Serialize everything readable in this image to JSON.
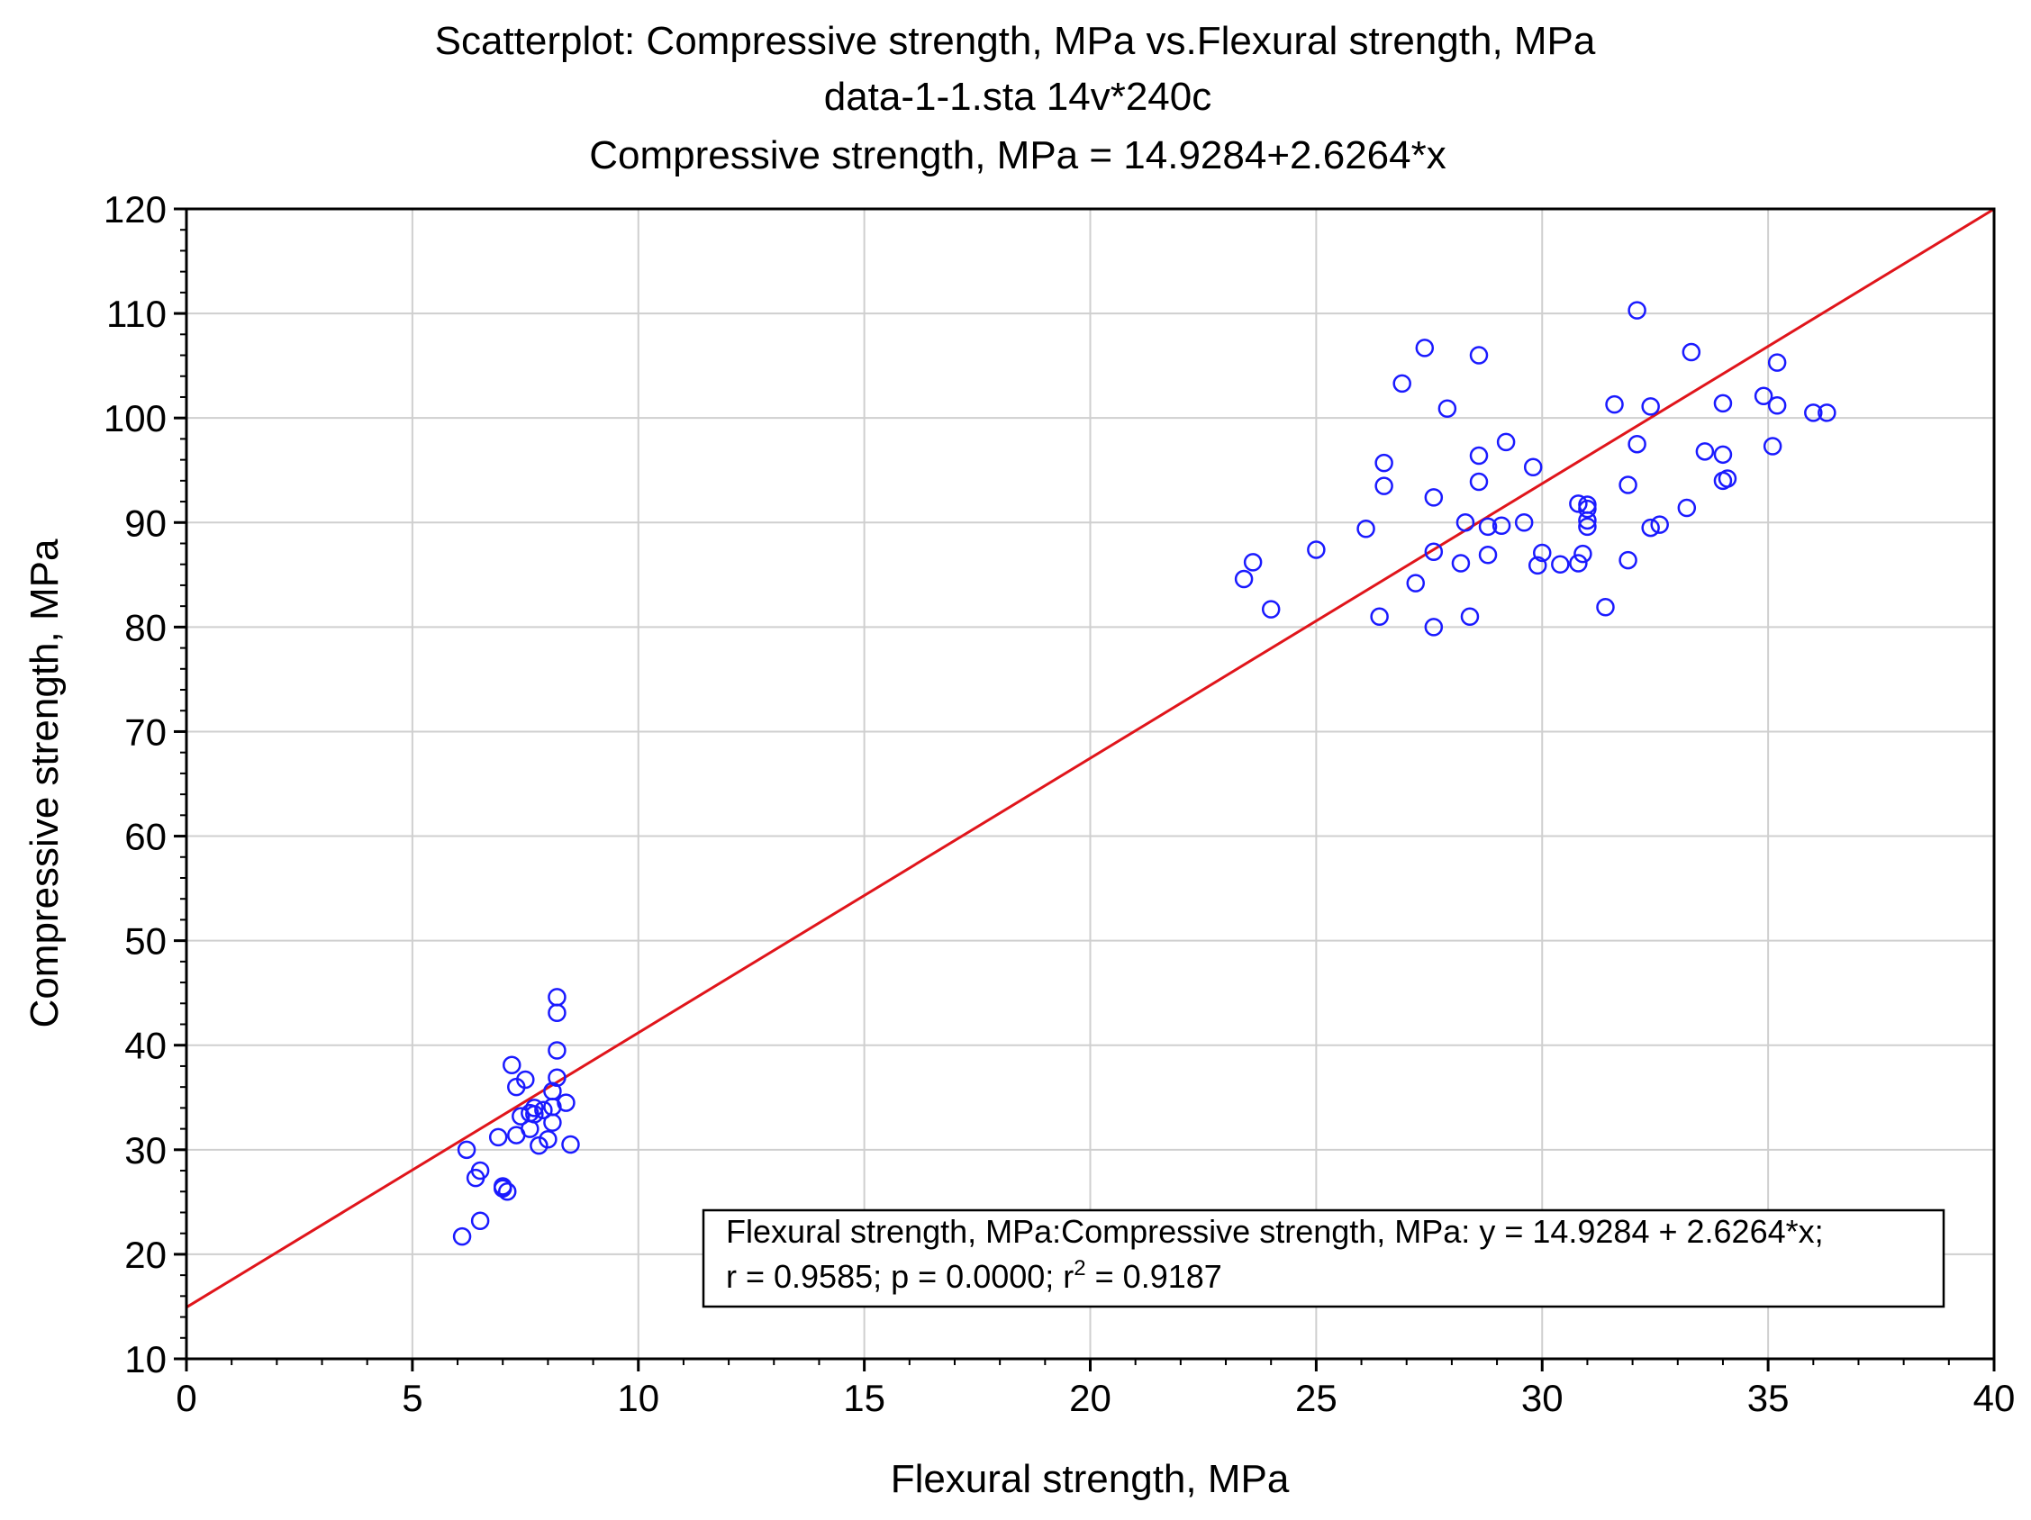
{
  "chart_data": {
    "type": "scatter",
    "title_lines": [
      "Scatterplot:   Compressive strength, MPa vs.Flexural strength, MPa",
      "data-1-1.sta 14v*240c",
      "Compressive strength, MPa = 14.9284+2.6264*x"
    ],
    "xlabel": "Flexural strength, MPa",
    "ylabel": "Compressive strength, MPa",
    "xlim": [
      0,
      40
    ],
    "ylim": [
      10,
      120
    ],
    "xticks": [
      0,
      5,
      10,
      15,
      20,
      25,
      30,
      35,
      40
    ],
    "yticks": [
      10,
      20,
      30,
      40,
      50,
      60,
      70,
      80,
      90,
      100,
      110,
      120
    ],
    "grid": true,
    "marker_color": "#1a1aff",
    "line_color": "#e0151b",
    "regression": {
      "intercept": 14.9284,
      "slope": 2.6264
    },
    "legend": {
      "placement": "bottom-right",
      "line1": "Flexural strength, MPa:Compressive strength, MPa:   y = 14.9284 + 2.6264*x;",
      "line2_prefix": "r = 0.9585; p = 0.0000; r",
      "line2_sup": "2",
      "line2_suffix": " = 0.9187"
    },
    "points": [
      [
        6.1,
        21.7
      ],
      [
        6.2,
        30.0
      ],
      [
        6.4,
        27.3
      ],
      [
        6.5,
        28.0
      ],
      [
        6.5,
        23.2
      ],
      [
        6.9,
        31.2
      ],
      [
        7.0,
        26.3
      ],
      [
        7.0,
        26.5
      ],
      [
        7.1,
        26.0
      ],
      [
        7.2,
        38.1
      ],
      [
        7.3,
        36.0
      ],
      [
        7.3,
        31.4
      ],
      [
        7.4,
        33.2
      ],
      [
        7.5,
        36.7
      ],
      [
        7.6,
        33.5
      ],
      [
        7.6,
        32.0
      ],
      [
        7.7,
        33.4
      ],
      [
        7.7,
        34.0
      ],
      [
        7.8,
        30.4
      ],
      [
        7.9,
        33.8
      ],
      [
        8.0,
        31.0
      ],
      [
        8.1,
        35.6
      ],
      [
        8.1,
        34.1
      ],
      [
        8.1,
        32.6
      ],
      [
        8.2,
        44.6
      ],
      [
        8.2,
        43.1
      ],
      [
        8.2,
        39.5
      ],
      [
        8.2,
        36.9
      ],
      [
        8.4,
        34.5
      ],
      [
        8.5,
        30.5
      ],
      [
        23.4,
        84.6
      ],
      [
        23.6,
        86.2
      ],
      [
        24.0,
        81.7
      ],
      [
        25.0,
        87.4
      ],
      [
        26.1,
        89.4
      ],
      [
        26.4,
        81.0
      ],
      [
        26.5,
        95.7
      ],
      [
        26.5,
        93.5
      ],
      [
        26.9,
        103.3
      ],
      [
        27.2,
        84.2
      ],
      [
        27.4,
        106.7
      ],
      [
        27.6,
        92.4
      ],
      [
        27.6,
        87.2
      ],
      [
        27.6,
        80.0
      ],
      [
        27.9,
        100.9
      ],
      [
        28.2,
        86.1
      ],
      [
        28.3,
        90.0
      ],
      [
        28.4,
        81.0
      ],
      [
        28.6,
        106.0
      ],
      [
        28.6,
        96.4
      ],
      [
        28.6,
        93.9
      ],
      [
        28.8,
        86.9
      ],
      [
        28.8,
        89.6
      ],
      [
        29.1,
        89.7
      ],
      [
        29.2,
        97.7
      ],
      [
        29.6,
        90.0
      ],
      [
        29.8,
        95.3
      ],
      [
        29.9,
        85.9
      ],
      [
        30.0,
        87.1
      ],
      [
        30.4,
        86.0
      ],
      [
        30.8,
        86.1
      ],
      [
        30.8,
        91.8
      ],
      [
        30.9,
        87.0
      ],
      [
        31.0,
        91.3
      ],
      [
        31.0,
        90.2
      ],
      [
        31.0,
        89.6
      ],
      [
        31.0,
        91.7
      ],
      [
        31.4,
        81.9
      ],
      [
        31.6,
        101.3
      ],
      [
        31.9,
        93.6
      ],
      [
        31.9,
        86.4
      ],
      [
        32.1,
        110.3
      ],
      [
        32.1,
        97.5
      ],
      [
        32.4,
        101.1
      ],
      [
        32.4,
        89.5
      ],
      [
        32.6,
        89.8
      ],
      [
        33.2,
        91.4
      ],
      [
        33.3,
        106.3
      ],
      [
        33.6,
        96.8
      ],
      [
        34.0,
        96.5
      ],
      [
        34.0,
        94.0
      ],
      [
        34.0,
        101.4
      ],
      [
        34.1,
        94.2
      ],
      [
        34.9,
        102.1
      ],
      [
        35.1,
        97.3
      ],
      [
        35.2,
        105.3
      ],
      [
        35.2,
        101.2
      ],
      [
        36.0,
        100.5
      ],
      [
        36.3,
        100.5
      ]
    ]
  }
}
